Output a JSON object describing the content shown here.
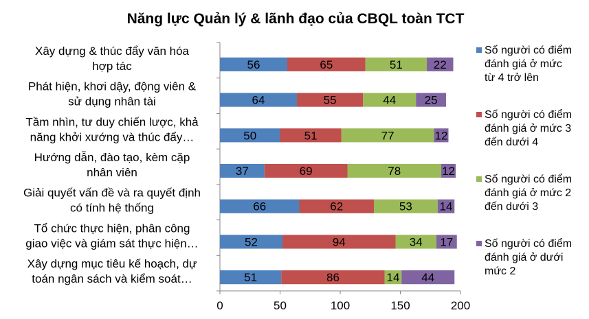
{
  "chart_data": {
    "type": "bar",
    "orientation": "horizontal",
    "stacked": true,
    "title": "Năng lực Quản lý & lãnh đạo của CBQL toàn TCT",
    "categories": [
      [
        "Xây dựng & thúc đẩy văn hóa",
        "hợp tác"
      ],
      [
        "Phát hiện, khơi dậy, động viên &",
        "sử dụng nhân tài"
      ],
      [
        "Tầm nhìn, tư duy chiến lược, khả",
        "năng khởi xướng và thúc đẩy…"
      ],
      [
        "Hướng dẫn, đào tạo, kèm cặp",
        "nhân viên"
      ],
      [
        "Giải quyết vấn đề và ra quyết định",
        "có tính hệ thống"
      ],
      [
        "Tổ chức thực hiện, phân công",
        "giao việc và giám sát thực hiện…"
      ],
      [
        "Xây dựng mục tiêu kế hoạch, dự",
        "toán ngân sách và kiểm soát…"
      ]
    ],
    "series": [
      {
        "name": [
          "Số người có điểm",
          "đánh giá ở mức",
          "từ 4 trở lên"
        ],
        "color": "#4f81bd",
        "values": [
          56,
          64,
          50,
          37,
          66,
          52,
          51
        ]
      },
      {
        "name": [
          "Số người có điểm",
          "đánh giá ở mức 3",
          "đến dưới 4"
        ],
        "color": "#c0504d",
        "values": [
          65,
          55,
          51,
          69,
          62,
          94,
          86
        ]
      },
      {
        "name": [
          "Số người có điểm",
          "đánh giá ở mức 2",
          "đến dưới 3"
        ],
        "color": "#9bbb59",
        "values": [
          51,
          44,
          77,
          78,
          53,
          34,
          14
        ]
      },
      {
        "name": [
          "Số người có điểm",
          "đánh giá ở dưới",
          "mức 2"
        ],
        "color": "#8064a2",
        "values": [
          22,
          25,
          12,
          12,
          14,
          17,
          44
        ]
      }
    ],
    "xlim": [
      0,
      200
    ],
    "xticks": [
      "0",
      "50",
      "100",
      "150",
      "200"
    ],
    "grid": false,
    "legend_position": "right"
  }
}
